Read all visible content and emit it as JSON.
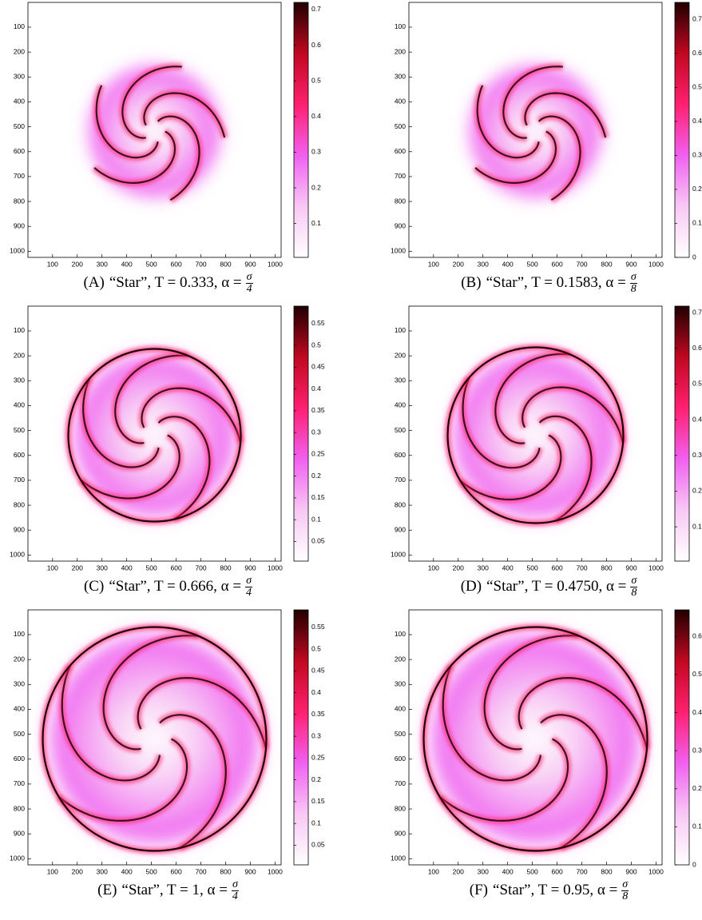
{
  "chart_data": [
    {
      "type": "heatmap",
      "xlim": [
        0.5,
        1024.5
      ],
      "ylim": [
        1024.5,
        0.5
      ],
      "xticks": [
        100,
        200,
        300,
        400,
        500,
        600,
        700,
        800,
        900,
        1000
      ],
      "yticks": [
        100,
        200,
        300,
        400,
        500,
        600,
        700,
        800,
        900,
        1000
      ],
      "colormap": [
        "#ffffff",
        "#f8c8f4",
        "#f060f0",
        "#ff2070",
        "#c00820",
        "#200000"
      ],
      "colorbar": {
        "lim": [
          0.005,
          0.72
        ],
        "ticks": [
          0.1,
          0.2,
          0.3,
          0.4,
          0.5,
          0.6,
          0.7
        ]
      },
      "caption": {
        "label": "(A)",
        "text": "“Star”, T = 0.333, α =",
        "frac": [
          "σ",
          "4"
        ]
      }
    },
    {
      "type": "heatmap",
      "xlim": [
        0.5,
        1024.5
      ],
      "ylim": [
        1024.5,
        0.5
      ],
      "xticks": [
        100,
        200,
        300,
        400,
        500,
        600,
        700,
        800,
        900,
        1000
      ],
      "yticks": [
        100,
        200,
        300,
        400,
        500,
        600,
        700,
        800,
        900,
        1000
      ],
      "colormap": [
        "#ffffff",
        "#f8c8f4",
        "#f060f0",
        "#ff2070",
        "#c00820",
        "#200000"
      ],
      "colorbar": {
        "lim": [
          0,
          0.75
        ],
        "ticks": [
          0,
          0.1,
          0.2,
          0.3,
          0.4,
          0.5,
          0.6,
          0.7
        ]
      },
      "caption": {
        "label": "(B)",
        "text": "“Star”, T = 0.1583, α =",
        "frac": [
          "σ",
          "8"
        ]
      }
    },
    {
      "type": "heatmap",
      "xlim": [
        0.5,
        1024.5
      ],
      "ylim": [
        1024.5,
        0.5
      ],
      "xticks": [
        100,
        200,
        300,
        400,
        500,
        600,
        700,
        800,
        900,
        1000
      ],
      "yticks": [
        100,
        200,
        300,
        400,
        500,
        600,
        700,
        800,
        900,
        1000
      ],
      "colormap": [
        "#ffffff",
        "#f8c8f4",
        "#f060f0",
        "#ff2070",
        "#c00820",
        "#200000"
      ],
      "colorbar": {
        "lim": [
          0.005,
          0.59
        ],
        "ticks": [
          0.05,
          0.1,
          0.15,
          0.2,
          0.25,
          0.3,
          0.35,
          0.4,
          0.45,
          0.5,
          0.55
        ]
      },
      "caption": {
        "label": "(C)",
        "text": "“Star”, T = 0.666, α =",
        "frac": [
          "σ",
          "4"
        ]
      }
    },
    {
      "type": "heatmap",
      "xlim": [
        0.5,
        1024.5
      ],
      "ylim": [
        1024.5,
        0.5
      ],
      "xticks": [
        100,
        200,
        300,
        400,
        500,
        600,
        700,
        800,
        900,
        1000
      ],
      "yticks": [
        100,
        200,
        300,
        400,
        500,
        600,
        700,
        800,
        900,
        1000
      ],
      "colormap": [
        "#ffffff",
        "#f8c8f4",
        "#f060f0",
        "#ff2070",
        "#c00820",
        "#200000"
      ],
      "colorbar": {
        "lim": [
          0.004,
          0.718
        ],
        "ticks": [
          0.1,
          0.2,
          0.3,
          0.4,
          0.5,
          0.6,
          0.7
        ]
      },
      "caption": {
        "label": "(D)",
        "text": "“Star”, T = 0.4750, α =",
        "frac": [
          "σ",
          "8"
        ]
      }
    },
    {
      "type": "heatmap",
      "xlim": [
        0.5,
        1024.5
      ],
      "ylim": [
        1024.5,
        0.5
      ],
      "xticks": [
        100,
        200,
        300,
        400,
        500,
        600,
        700,
        800,
        900,
        1000
      ],
      "yticks": [
        100,
        200,
        300,
        400,
        500,
        600,
        700,
        800,
        900,
        1000
      ],
      "colormap": [
        "#ffffff",
        "#f8c8f4",
        "#f060f0",
        "#ff2070",
        "#c00820",
        "#200000"
      ],
      "colorbar": {
        "lim": [
          0.005,
          0.59
        ],
        "ticks": [
          0.05,
          0.1,
          0.15,
          0.2,
          0.25,
          0.3,
          0.35,
          0.4,
          0.45,
          0.5,
          0.55
        ]
      },
      "caption": {
        "label": "(E)",
        "text": "“Star”, T = 1, α =",
        "frac": [
          "σ",
          "4"
        ]
      }
    },
    {
      "type": "heatmap",
      "xlim": [
        0.5,
        1024.5
      ],
      "ylim": [
        1024.5,
        0.5
      ],
      "xticks": [
        100,
        200,
        300,
        400,
        500,
        600,
        700,
        800,
        900,
        1000
      ],
      "yticks": [
        100,
        200,
        300,
        400,
        500,
        600,
        700,
        800,
        900,
        1000
      ],
      "colormap": [
        "#ffffff",
        "#f8c8f4",
        "#f060f0",
        "#ff2070",
        "#c00820",
        "#200000"
      ],
      "colorbar": {
        "lim": [
          0,
          0.67
        ],
        "ticks": [
          0,
          0.1,
          0.2,
          0.3,
          0.4,
          0.5,
          0.6
        ]
      },
      "caption": {
        "label": "(F)",
        "text": "“Star”, T = 0.95, α =",
        "frac": [
          "σ",
          "8"
        ]
      }
    }
  ]
}
